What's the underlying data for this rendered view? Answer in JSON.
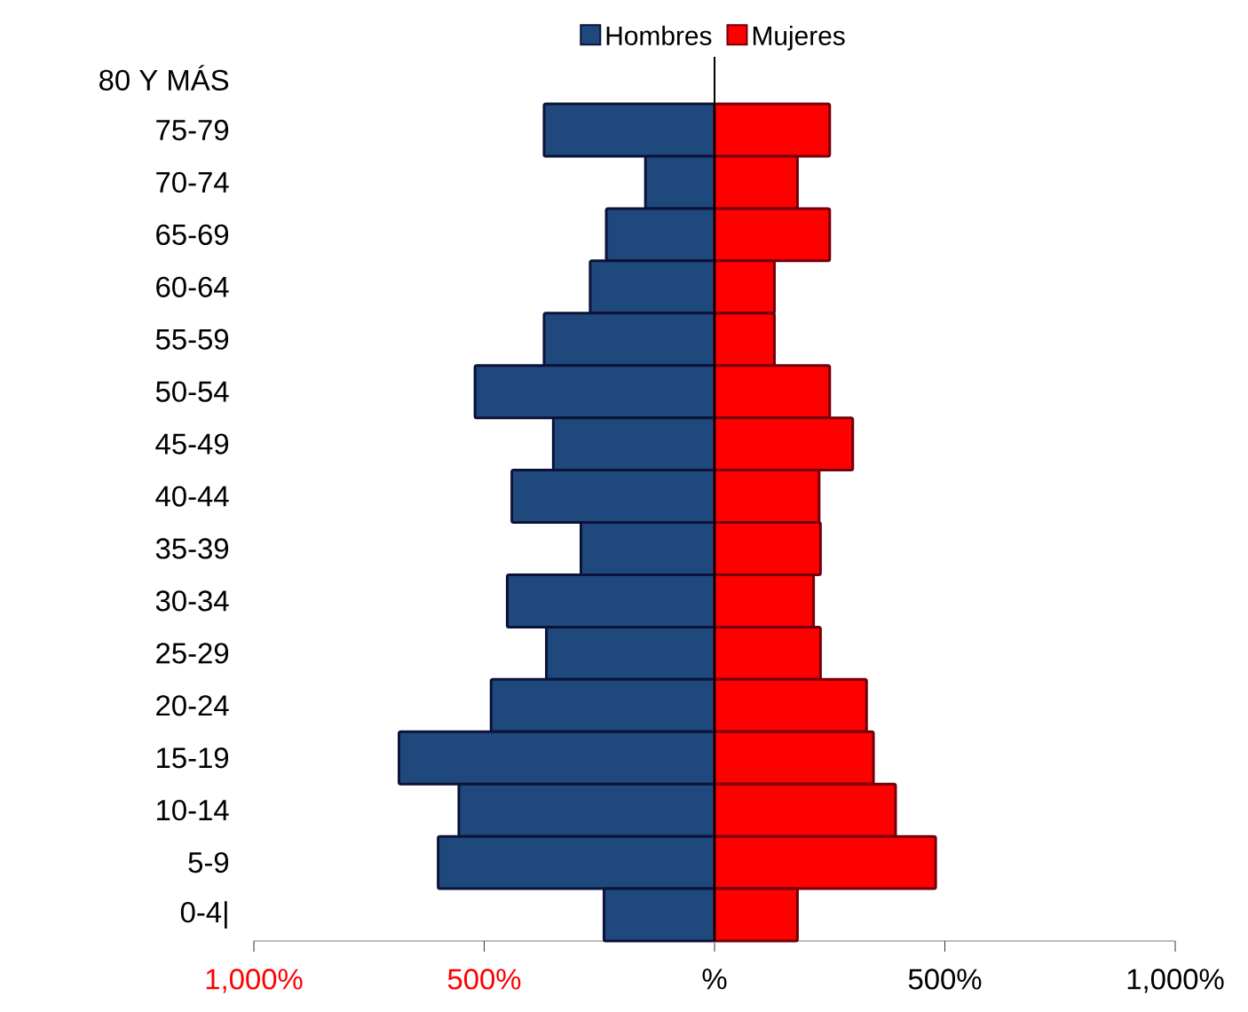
{
  "chart_data": {
    "type": "bar",
    "orientation": "horizontal",
    "stacked": true,
    "legend": "top",
    "categories": [
      "80 Y MÁS",
      "75-79",
      "70-74",
      "65-69",
      "60-64",
      "55-59",
      "50-54",
      "45-49",
      "40-44",
      "35-39",
      "30-34",
      "25-29",
      "20-24",
      "15-19",
      "10-14",
      "5-9",
      "0-4|"
    ],
    "series": [
      {
        "name": "Hombres",
        "color": "#1f497d",
        "values": [
          0,
          -370,
          -150,
          -235,
          -270,
          -370,
          -520,
          -350,
          -440,
          -290,
          -450,
          -365,
          -485,
          -685,
          -555,
          -600,
          -240
        ]
      },
      {
        "name": "Mujeres",
        "color": "#ff0000",
        "values": [
          0,
          250,
          180,
          250,
          130,
          130,
          250,
          300,
          227,
          230,
          215,
          230,
          330,
          345,
          393,
          480,
          180
        ]
      }
    ],
    "xlim": [
      -1000,
      1000
    ],
    "xticks": [
      {
        "value": -1000,
        "label": "1,000%"
      },
      {
        "value": -500,
        "label": "500%"
      },
      {
        "value": 0,
        "label": "%"
      },
      {
        "value": 500,
        "label": "500%"
      },
      {
        "value": 1000,
        "label": "1,000%"
      }
    ]
  }
}
